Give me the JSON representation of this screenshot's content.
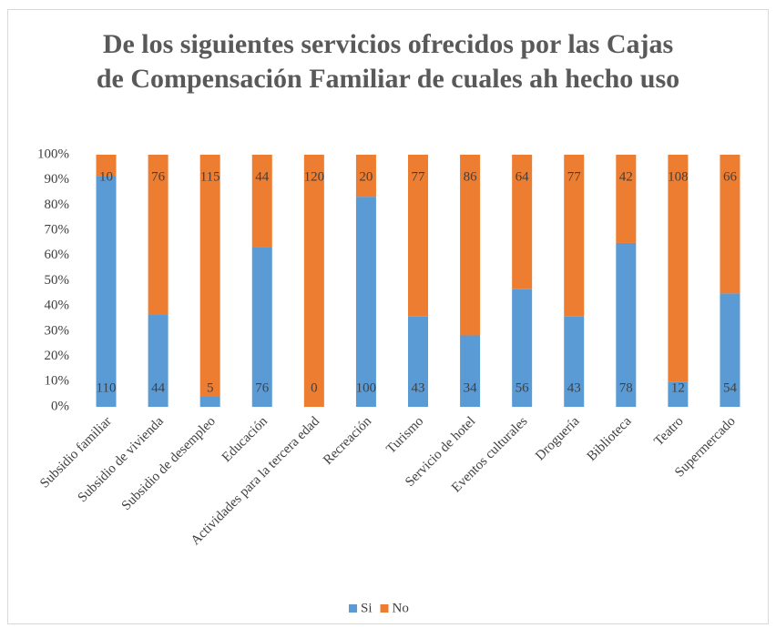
{
  "chart_data": {
    "type": "bar",
    "stacked": "percent",
    "title": "De los siguientes servicios ofrecidos por las Cajas de Compensación Familiar de cuales ah hecho uso",
    "categories": [
      "Subsidio familiar",
      "Subsidio de vivienda",
      "Subsidio de desempleo",
      "Educación",
      "Actividades para la tercera edad",
      "Recreación",
      "Turismo",
      "Servicio de hotel",
      "Eventos culturales",
      "Droguería",
      "Biblioteca",
      "Teatro",
      "Supermercado"
    ],
    "series": [
      {
        "name": "Si",
        "color": "#5b9bd5",
        "values": [
          110,
          44,
          5,
          76,
          0,
          100,
          43,
          34,
          56,
          43,
          78,
          12,
          54
        ]
      },
      {
        "name": "No",
        "color": "#ed7d31",
        "values": [
          10,
          76,
          115,
          44,
          120,
          20,
          77,
          86,
          64,
          77,
          42,
          108,
          66
        ]
      }
    ],
    "ylim": [
      0,
      100
    ],
    "yticks": [
      {
        "value": 0,
        "label": "0%"
      },
      {
        "value": 10,
        "label": "10%"
      },
      {
        "value": 20,
        "label": "20%"
      },
      {
        "value": 30,
        "label": "30%"
      },
      {
        "value": 40,
        "label": "40%"
      },
      {
        "value": 50,
        "label": "50%"
      },
      {
        "value": 60,
        "label": "60%"
      },
      {
        "value": 70,
        "label": "70%"
      },
      {
        "value": 80,
        "label": "80%"
      },
      {
        "value": 90,
        "label": "90%"
      },
      {
        "value": 100,
        "label": "100%"
      }
    ],
    "grid": false,
    "legend": "bottom"
  }
}
